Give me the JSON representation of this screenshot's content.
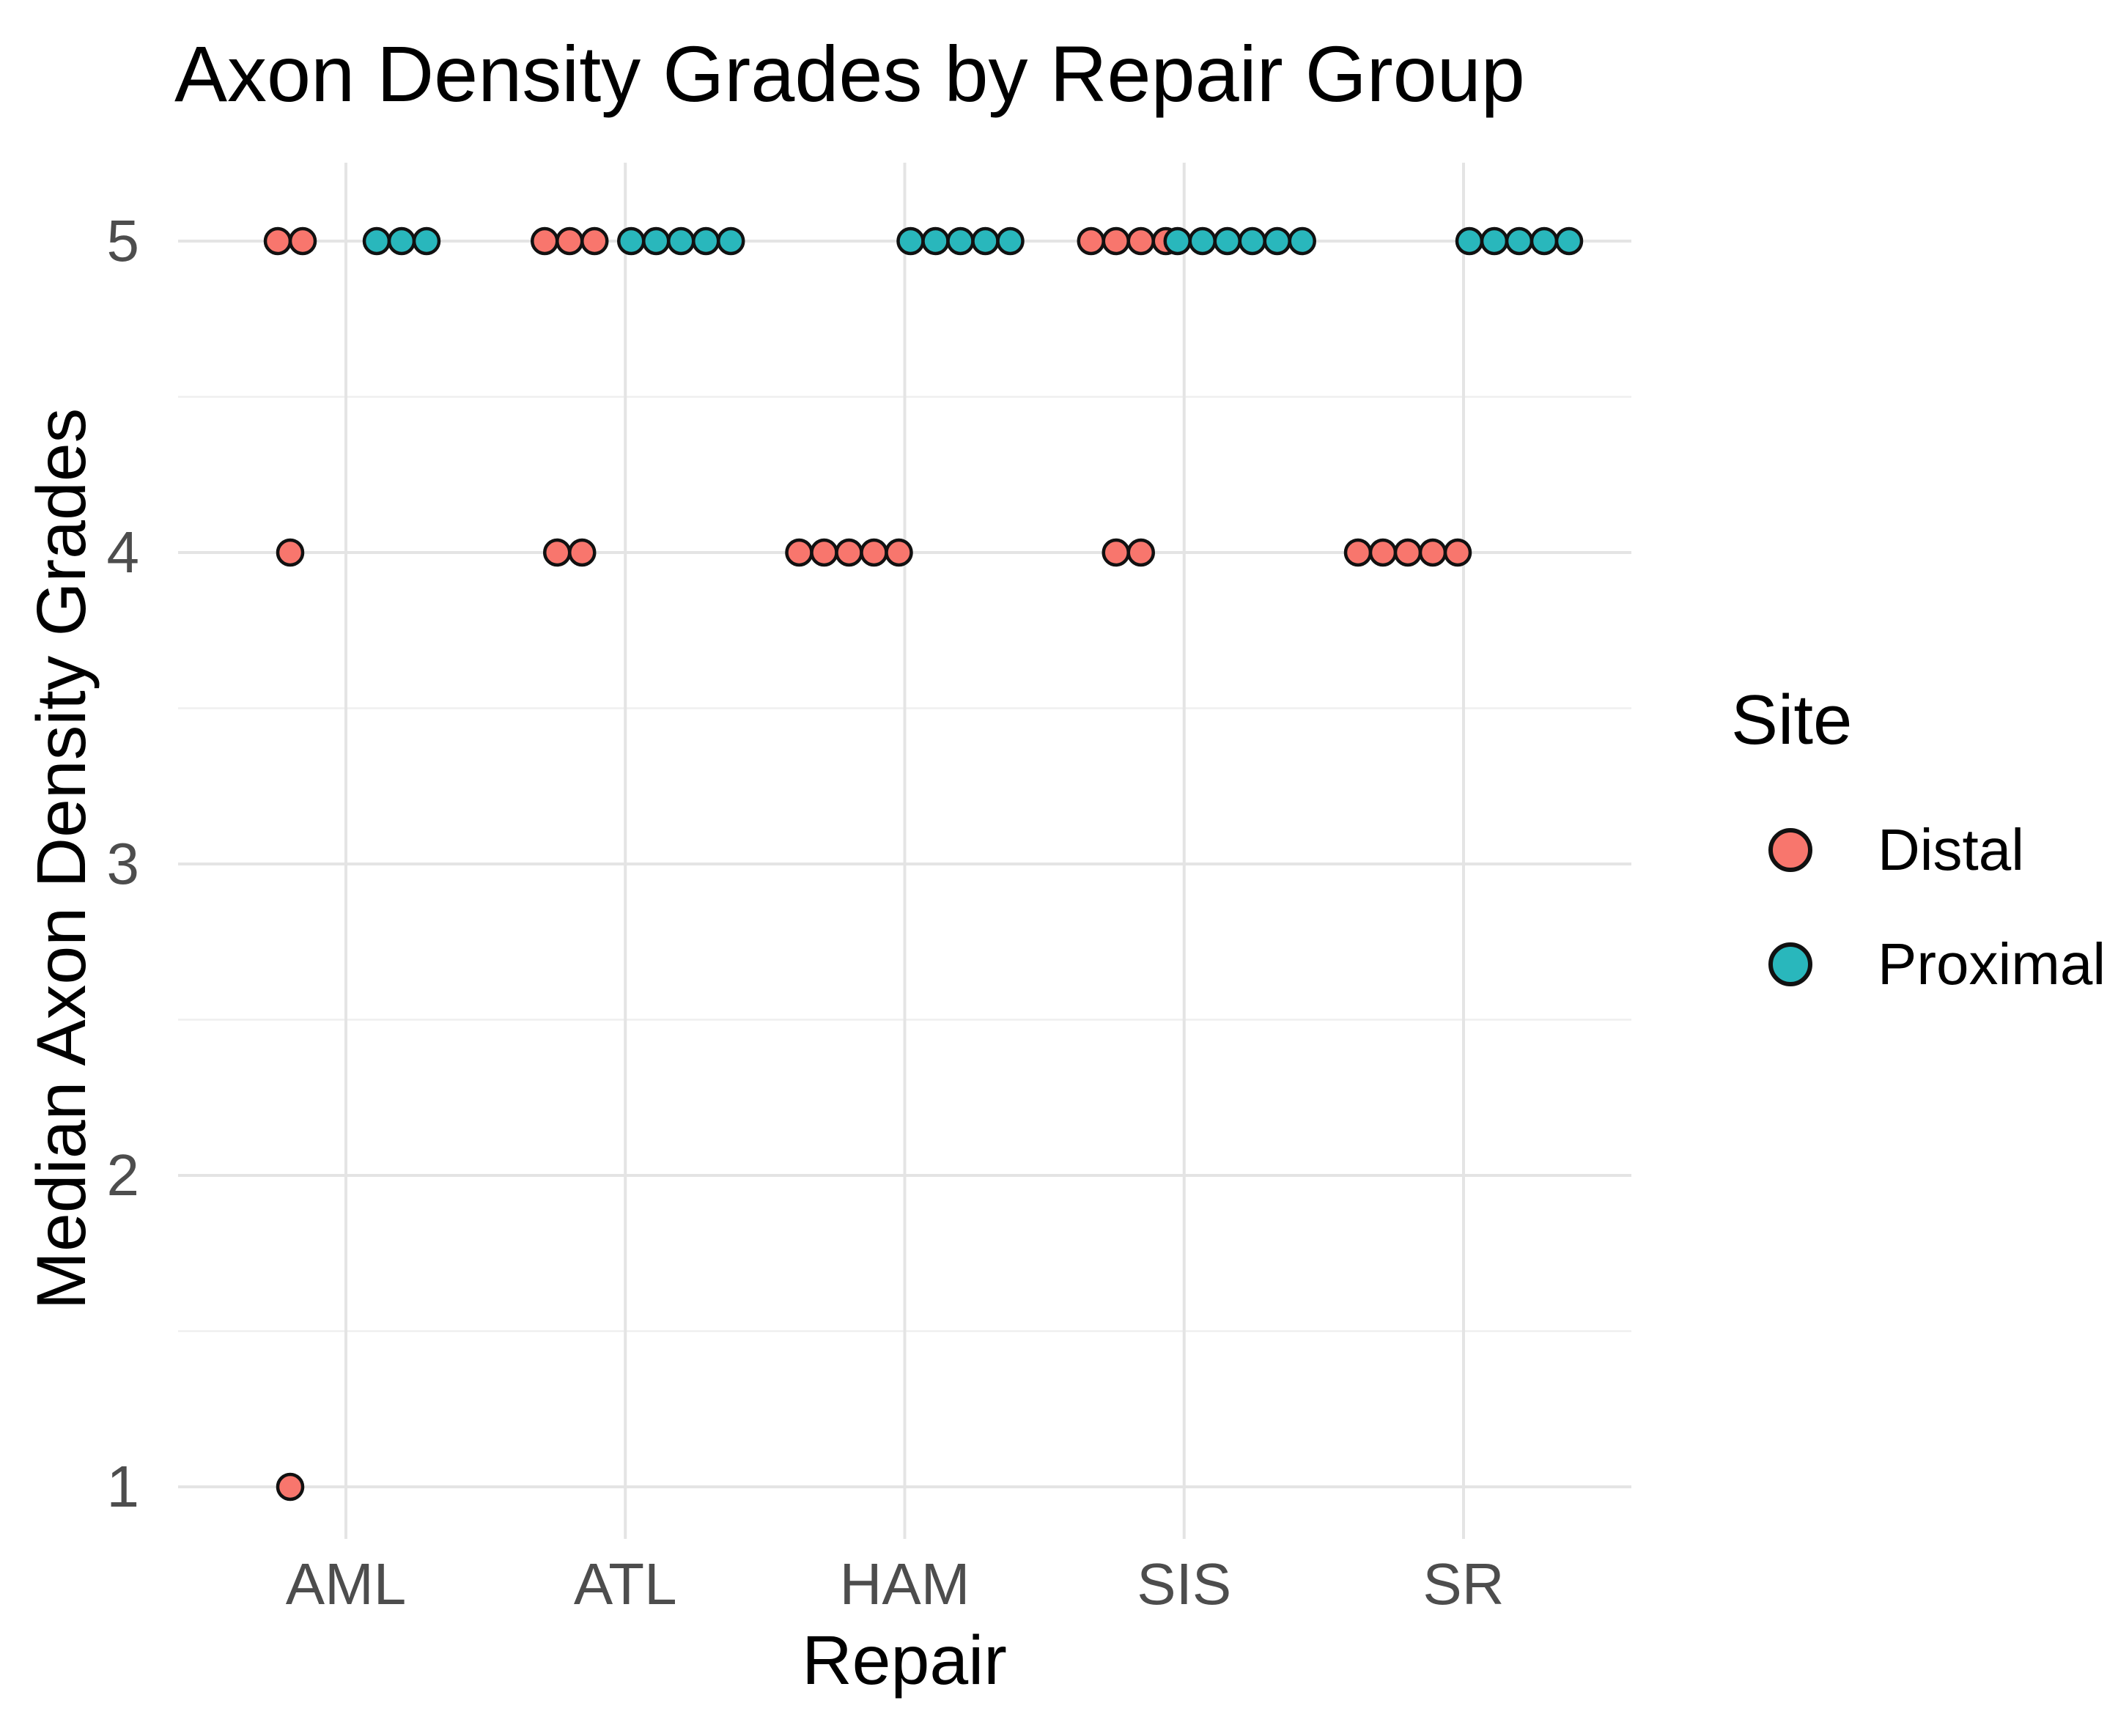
{
  "chart_data": {
    "type": "scatter",
    "title": "Axon Density Grades by Repair Group",
    "xlabel": "Repair",
    "ylabel": "Median Axon Density Grades",
    "categories": [
      "AML",
      "ATL",
      "HAM",
      "SIS",
      "SR"
    ],
    "y_ticks": [
      5,
      4,
      3,
      2,
      1
    ],
    "ylim": [
      1,
      5
    ],
    "grid": true,
    "legend_position": "right",
    "legend": {
      "title": "Site",
      "entries": [
        {
          "label": "Distal",
          "color": "#F8766D"
        },
        {
          "label": "Proximal",
          "color": "#29B7BC"
        }
      ]
    },
    "point_outline_color": "#111111",
    "gridline_major_color": "#E4E4E4",
    "gridline_minor_color": "#EFEFEF",
    "tick_label_color": "#4D4D4D",
    "series": [
      {
        "name": "Distal",
        "color": "#F8766D",
        "side": "left",
        "counts": {
          "AML": {
            "5": 2,
            "4": 1,
            "1": 1
          },
          "ATL": {
            "5": 3,
            "4": 2
          },
          "HAM": {
            "4": 5
          },
          "SIS": {
            "5": 4,
            "4": 2
          },
          "SR": {
            "4": 5
          }
        }
      },
      {
        "name": "Proximal",
        "color": "#29B7BC",
        "side": "right",
        "counts": {
          "AML": {
            "5": 3
          },
          "ATL": {
            "5": 5
          },
          "HAM": {
            "5": 5
          },
          "SIS": {
            "5": 6
          },
          "SR": {
            "5": 5
          }
        }
      }
    ]
  }
}
